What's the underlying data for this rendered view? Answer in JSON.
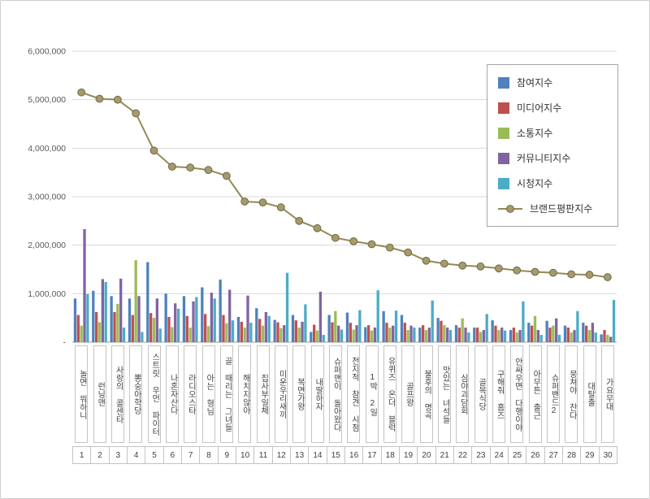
{
  "chart": {
    "y_axis_labels": [
      "6,000,000",
      "5,000,000",
      "4,000,000",
      "3,000,000",
      "2,000,000",
      "1,000,000",
      "-"
    ],
    "colors": {
      "participation": "#4F81BD",
      "media": "#C0504D",
      "communication": "#9BBB59",
      "community": "#8064A2",
      "viewing": "#4BACC6",
      "brand_line": "#948A54",
      "brand_marker": "#A59A6A",
      "gridline": "#d9d9d9",
      "axis": "#9b9b9b"
    }
  },
  "chart_data": {
    "type": "bar",
    "title": "",
    "xlabel": "",
    "ylabel": "",
    "ylim": [
      0,
      6000000
    ],
    "ytick": 1000000,
    "grid": true,
    "legend_position": "right-top",
    "categories": [
      "놀면 뭐하니",
      "런닝맨",
      "사랑의 콜센타",
      "뽕숭아학당",
      "스트릿 우먼 파이터",
      "나혼자산다",
      "라디오스타",
      "아는 형님",
      "골 때리는 그녀들",
      "해치지않아",
      "집사부일체",
      "미운우리새끼",
      "복면가왕",
      "내딸하자",
      "슈퍼맨이 돌아왔다",
      "전지적 참견 시점",
      "1박 2일",
      "유퀴즈 온더 블럭",
      "골프왕",
      "불후의 명곡",
      "맛있는 녀석들",
      "심야괴담회",
      "골목식당",
      "구해줘 홈즈",
      "안싸우면 다행이야",
      "아무튼 출근",
      "슈퍼밴드2",
      "뭉쳐야 찬다",
      "대탈출",
      "가요무대"
    ],
    "x_numbers": [
      1,
      2,
      3,
      4,
      5,
      6,
      7,
      8,
      9,
      10,
      11,
      12,
      13,
      14,
      15,
      16,
      17,
      18,
      19,
      20,
      21,
      22,
      23,
      24,
      25,
      26,
      27,
      28,
      29,
      30
    ],
    "series": [
      {
        "key": "participation",
        "name": "참여지수",
        "type": "bar",
        "values": [
          900000,
          1060000,
          950000,
          900000,
          1650000,
          1000000,
          950000,
          1130000,
          1290000,
          520000,
          700000,
          460000,
          560000,
          210000,
          560000,
          610000,
          310000,
          640000,
          560000,
          300000,
          500000,
          350000,
          300000,
          450000,
          250000,
          400000,
          440000,
          340000,
          400000,
          160000
        ]
      },
      {
        "key": "media",
        "name": "미디어지수",
        "type": "bar",
        "values": [
          560000,
          620000,
          620000,
          560000,
          600000,
          520000,
          540000,
          580000,
          560000,
          420000,
          480000,
          410000,
          450000,
          360000,
          410000,
          400000,
          350000,
          400000,
          400000,
          350000,
          440000,
          300000,
          300000,
          340000,
          300000,
          340000,
          300000,
          300000,
          340000,
          250000
        ]
      },
      {
        "key": "communication",
        "name": "소통지수",
        "type": "bar",
        "values": [
          340000,
          410000,
          790000,
          1690000,
          500000,
          310000,
          300000,
          330000,
          390000,
          300000,
          340000,
          290000,
          300000,
          240000,
          640000,
          260000,
          240000,
          300000,
          250000,
          250000,
          350000,
          490000,
          210000,
          250000,
          200000,
          540000,
          340000,
          200000,
          250000,
          150000
        ]
      },
      {
        "key": "community",
        "name": "커뮤니티지수",
        "type": "bar",
        "values": [
          2330000,
          1300000,
          1310000,
          950000,
          900000,
          800000,
          840000,
          1020000,
          1080000,
          960000,
          620000,
          350000,
          420000,
          1040000,
          340000,
          350000,
          300000,
          340000,
          340000,
          300000,
          300000,
          300000,
          250000,
          300000,
          250000,
          250000,
          490000,
          250000,
          400000,
          110000
        ]
      },
      {
        "key": "viewing",
        "name": "시청지수",
        "type": "bar",
        "values": [
          990000,
          1240000,
          300000,
          210000,
          280000,
          690000,
          930000,
          900000,
          450000,
          400000,
          540000,
          1430000,
          780000,
          150000,
          260000,
          660000,
          1070000,
          650000,
          300000,
          860000,
          250000,
          200000,
          580000,
          240000,
          840000,
          150000,
          150000,
          640000,
          200000,
          870000
        ]
      },
      {
        "key": "brand",
        "name": "브랜드평판지수",
        "type": "line",
        "values": [
          5150000,
          5020000,
          5000000,
          4720000,
          3950000,
          3620000,
          3600000,
          3550000,
          3430000,
          2900000,
          2880000,
          2780000,
          2500000,
          2350000,
          2150000,
          2080000,
          2020000,
          1950000,
          1850000,
          1680000,
          1620000,
          1580000,
          1560000,
          1520000,
          1480000,
          1450000,
          1430000,
          1400000,
          1390000,
          1340000
        ]
      }
    ]
  }
}
